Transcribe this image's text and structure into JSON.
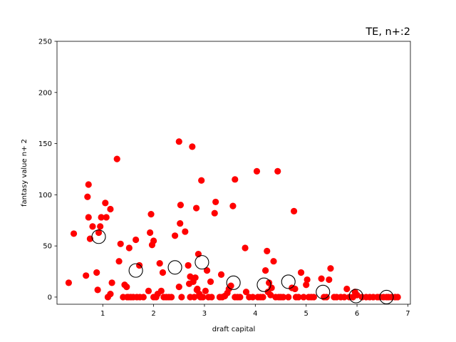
{
  "chart_data": {
    "type": "scatter",
    "title": "TE, n+:2",
    "xlabel": "draft capital",
    "ylabel": "fantasy value n+ 2",
    "xlim": [
      0.1,
      7.05
    ],
    "ylim": [
      -7,
      250
    ],
    "xticks": [
      1,
      2,
      3,
      4,
      5,
      6,
      7
    ],
    "yticks": [
      0,
      50,
      100,
      150,
      200,
      250
    ],
    "grid": false,
    "colors": {
      "points": "#ff0000",
      "means_edge": "#000000"
    },
    "series": [
      {
        "marker": "filled-circle",
        "points": [
          [
            0.33,
            14
          ],
          [
            0.43,
            62
          ],
          [
            0.67,
            21
          ],
          [
            0.7,
            98
          ],
          [
            0.72,
            110
          ],
          [
            0.72,
            78
          ],
          [
            0.75,
            57
          ],
          [
            0.8,
            69
          ],
          [
            0.88,
            24
          ],
          [
            0.9,
            7
          ],
          [
            0.92,
            63
          ],
          [
            0.95,
            69
          ],
          [
            0.97,
            78
          ],
          [
            1.05,
            92
          ],
          [
            1.07,
            78
          ],
          [
            1.1,
            0
          ],
          [
            1.15,
            86
          ],
          [
            1.15,
            3
          ],
          [
            1.18,
            14
          ],
          [
            1.28,
            135
          ],
          [
            1.32,
            35
          ],
          [
            1.35,
            52
          ],
          [
            1.4,
            0
          ],
          [
            1.43,
            12
          ],
          [
            1.47,
            10
          ],
          [
            1.48,
            0
          ],
          [
            1.5,
            0
          ],
          [
            1.52,
            48
          ],
          [
            1.55,
            0
          ],
          [
            1.6,
            0
          ],
          [
            1.65,
            56
          ],
          [
            1.67,
            0
          ],
          [
            1.72,
            31
          ],
          [
            1.73,
            0
          ],
          [
            1.8,
            0
          ],
          [
            1.9,
            6
          ],
          [
            1.93,
            63
          ],
          [
            1.95,
            81
          ],
          [
            1.97,
            51
          ],
          [
            2.0,
            55
          ],
          [
            2.0,
            0
          ],
          [
            2.05,
            0
          ],
          [
            2.08,
            3
          ],
          [
            2.12,
            33
          ],
          [
            2.15,
            6
          ],
          [
            2.18,
            24
          ],
          [
            2.2,
            0
          ],
          [
            2.25,
            0
          ],
          [
            2.3,
            0
          ],
          [
            2.35,
            0
          ],
          [
            2.42,
            60
          ],
          [
            2.5,
            152
          ],
          [
            2.5,
            10
          ],
          [
            2.52,
            72
          ],
          [
            2.53,
            90
          ],
          [
            2.55,
            0
          ],
          [
            2.62,
            64
          ],
          [
            2.68,
            31
          ],
          [
            2.7,
            13
          ],
          [
            2.72,
            20
          ],
          [
            2.72,
            0
          ],
          [
            2.76,
            147
          ],
          [
            2.78,
            15
          ],
          [
            2.8,
            0
          ],
          [
            2.82,
            19
          ],
          [
            2.84,
            87
          ],
          [
            2.85,
            7
          ],
          [
            2.86,
            8
          ],
          [
            2.88,
            42
          ],
          [
            2.9,
            3
          ],
          [
            2.92,
            0
          ],
          [
            2.94,
            114
          ],
          [
            2.97,
            0
          ],
          [
            3.02,
            6
          ],
          [
            3.05,
            26
          ],
          [
            3.08,
            0
          ],
          [
            3.12,
            15
          ],
          [
            3.14,
            0
          ],
          [
            3.2,
            82
          ],
          [
            3.22,
            93
          ],
          [
            3.3,
            0
          ],
          [
            3.33,
            22
          ],
          [
            3.35,
            0
          ],
          [
            3.4,
            1
          ],
          [
            3.45,
            4
          ],
          [
            3.48,
            8
          ],
          [
            3.52,
            11
          ],
          [
            3.56,
            89
          ],
          [
            3.6,
            115
          ],
          [
            3.6,
            0
          ],
          [
            3.65,
            0
          ],
          [
            3.7,
            0
          ],
          [
            3.8,
            48
          ],
          [
            3.82,
            5
          ],
          [
            3.88,
            0
          ],
          [
            3.95,
            0
          ],
          [
            4.03,
            123
          ],
          [
            4.05,
            0
          ],
          [
            4.1,
            0
          ],
          [
            4.15,
            0
          ],
          [
            4.2,
            26
          ],
          [
            4.23,
            45
          ],
          [
            4.25,
            5
          ],
          [
            4.27,
            14
          ],
          [
            4.3,
            2
          ],
          [
            4.32,
            9
          ],
          [
            4.36,
            35
          ],
          [
            4.4,
            0
          ],
          [
            4.44,
            123
          ],
          [
            4.46,
            0
          ],
          [
            4.5,
            0
          ],
          [
            4.55,
            0
          ],
          [
            4.65,
            0
          ],
          [
            4.72,
            9
          ],
          [
            4.76,
            84
          ],
          [
            4.78,
            8
          ],
          [
            4.8,
            0
          ],
          [
            4.85,
            0
          ],
          [
            4.9,
            24
          ],
          [
            4.95,
            0
          ],
          [
            5.0,
            12
          ],
          [
            5.02,
            17
          ],
          [
            5.05,
            0
          ],
          [
            5.1,
            0
          ],
          [
            5.15,
            0
          ],
          [
            5.3,
            18
          ],
          [
            5.35,
            0
          ],
          [
            5.4,
            0
          ],
          [
            5.45,
            17
          ],
          [
            5.48,
            28
          ],
          [
            5.55,
            0
          ],
          [
            5.6,
            0
          ],
          [
            5.68,
            0
          ],
          [
            5.75,
            0
          ],
          [
            5.8,
            8
          ],
          [
            5.85,
            0
          ],
          [
            5.92,
            0
          ],
          [
            5.96,
            5
          ],
          [
            6.0,
            2
          ],
          [
            6.1,
            0
          ],
          [
            6.18,
            0
          ],
          [
            6.25,
            0
          ],
          [
            6.32,
            0
          ],
          [
            6.4,
            0
          ],
          [
            6.45,
            0
          ],
          [
            6.52,
            0
          ],
          [
            6.58,
            0
          ],
          [
            6.62,
            0
          ],
          [
            6.68,
            0
          ],
          [
            6.75,
            0
          ],
          [
            6.8,
            0
          ]
        ]
      },
      {
        "marker": "open-circle",
        "points": [
          [
            0.92,
            59
          ],
          [
            1.65,
            26
          ],
          [
            2.42,
            29
          ],
          [
            2.95,
            34
          ],
          [
            3.57,
            14
          ],
          [
            4.17,
            12
          ],
          [
            4.65,
            15
          ],
          [
            5.33,
            5
          ],
          [
            5.98,
            1
          ],
          [
            6.58,
            0
          ]
        ]
      }
    ]
  }
}
